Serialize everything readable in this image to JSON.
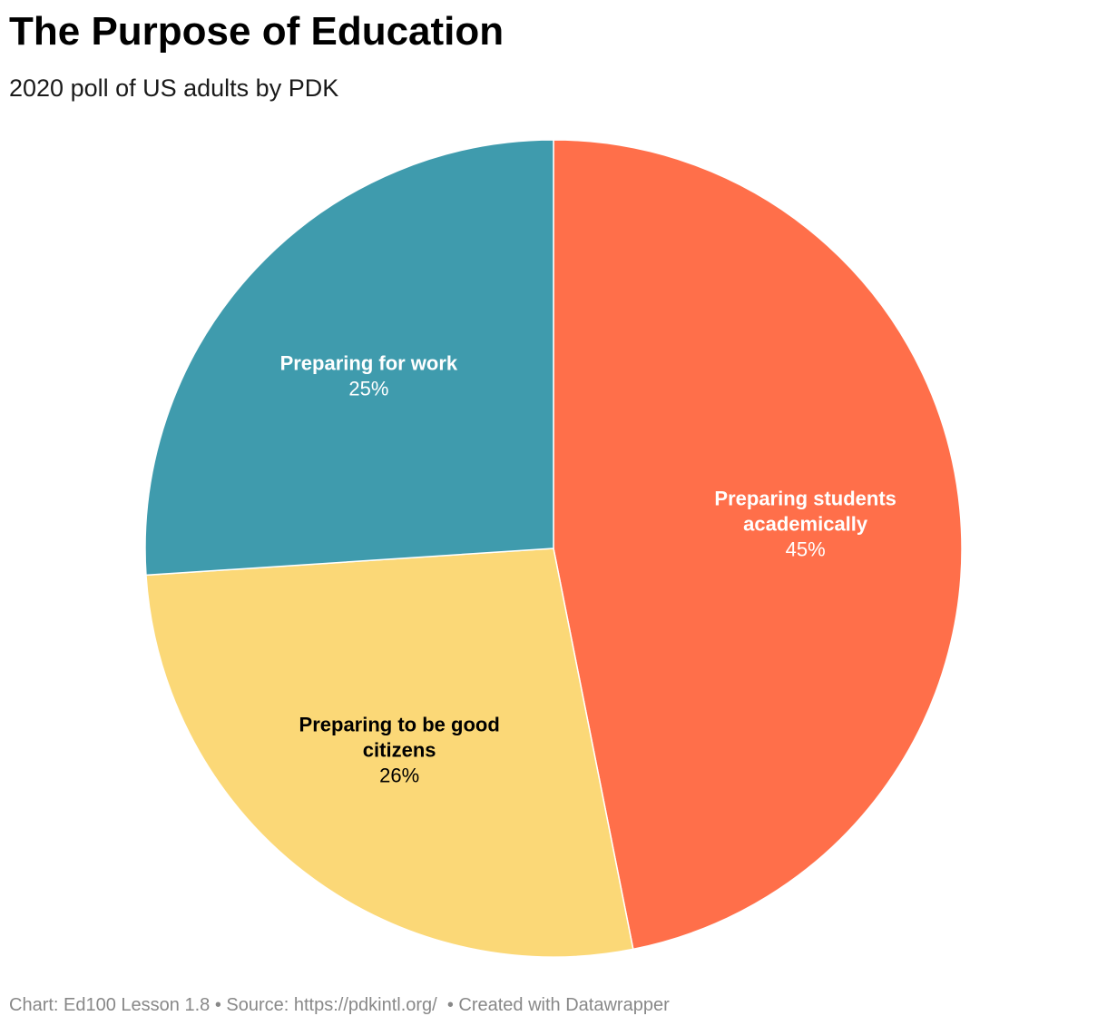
{
  "header": {
    "title": "The Purpose of Education",
    "subtitle": "2020 poll of US adults by PDK"
  },
  "footer": {
    "credits": "Chart: Ed100 Lesson 1.8 • Source: https://pdkintl.org/  • Created with Datawrapper"
  },
  "chart_data": {
    "type": "pie",
    "title": "The Purpose of Education",
    "subtitle": "2020 poll of US adults by PDK",
    "start": "12 o'clock, clockwise",
    "slices": [
      {
        "label": "Preparing students academically",
        "label_lines": [
          "Preparing students",
          "academically"
        ],
        "value": 45,
        "value_label": "45%",
        "color": "#ff6f4a",
        "text_color": "#ffffff"
      },
      {
        "label": "Preparing to be good citizens",
        "label_lines": [
          "Preparing to be good",
          "citizens"
        ],
        "value": 26,
        "value_label": "26%",
        "color": "#fbd877",
        "text_color": "#000000"
      },
      {
        "label": "Preparing for work",
        "label_lines": [
          "Preparing for work"
        ],
        "value": 25,
        "value_label": "25%",
        "color": "#3f9bad",
        "text_color": "#ffffff"
      }
    ]
  }
}
